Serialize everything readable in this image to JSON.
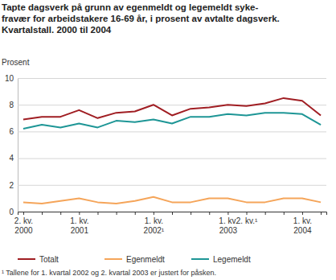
{
  "chart_data": {
    "type": "line",
    "title": [
      "Tapte dagsverk på grunn av egenmeldt og legemeldt syke-",
      "fravær for arbeidstakere 16-69 år, i prosent av avtalte dagsverk.",
      "Kvartalstall. 2000 til 2004"
    ],
    "y_label": "Prosent",
    "note": "¹ Tallene for 1. kvartal 2002 og 2. kvartal 2003 er justert for påsken.",
    "categories": [
      "2. kv.\n2000",
      null,
      null,
      "1. kv.\n2001",
      null,
      null,
      null,
      "1. kv.\n2002¹",
      null,
      null,
      null,
      "1. kv.\n2003",
      "2. kv.¹",
      null,
      null,
      "1. kv.\n2004",
      null
    ],
    "series": [
      {
        "name": "Totalt",
        "color": "#a01e23",
        "values": [
          6.9,
          7.1,
          7.1,
          7.6,
          7.0,
          7.4,
          7.5,
          8.0,
          7.2,
          7.7,
          7.8,
          8.0,
          7.9,
          8.1,
          8.5,
          8.3,
          7.2
        ]
      },
      {
        "name": "Egenmeldt",
        "color": "#f5a55a",
        "values": [
          0.7,
          0.6,
          0.8,
          1.0,
          0.7,
          0.6,
          0.8,
          1.1,
          0.7,
          0.7,
          1.0,
          1.0,
          0.7,
          0.7,
          1.0,
          1.0,
          0.7
        ]
      },
      {
        "name": "Legemeldt",
        "color": "#1e9696",
        "values": [
          6.2,
          6.5,
          6.3,
          6.6,
          6.3,
          6.8,
          6.7,
          6.9,
          6.6,
          7.1,
          7.1,
          7.3,
          7.2,
          7.4,
          7.4,
          7.3,
          6.5
        ]
      }
    ],
    "ylim": [
      0,
      10
    ],
    "yticks": [
      0,
      2,
      4,
      6,
      8,
      10
    ],
    "grid": true,
    "legend": "bottom"
  }
}
